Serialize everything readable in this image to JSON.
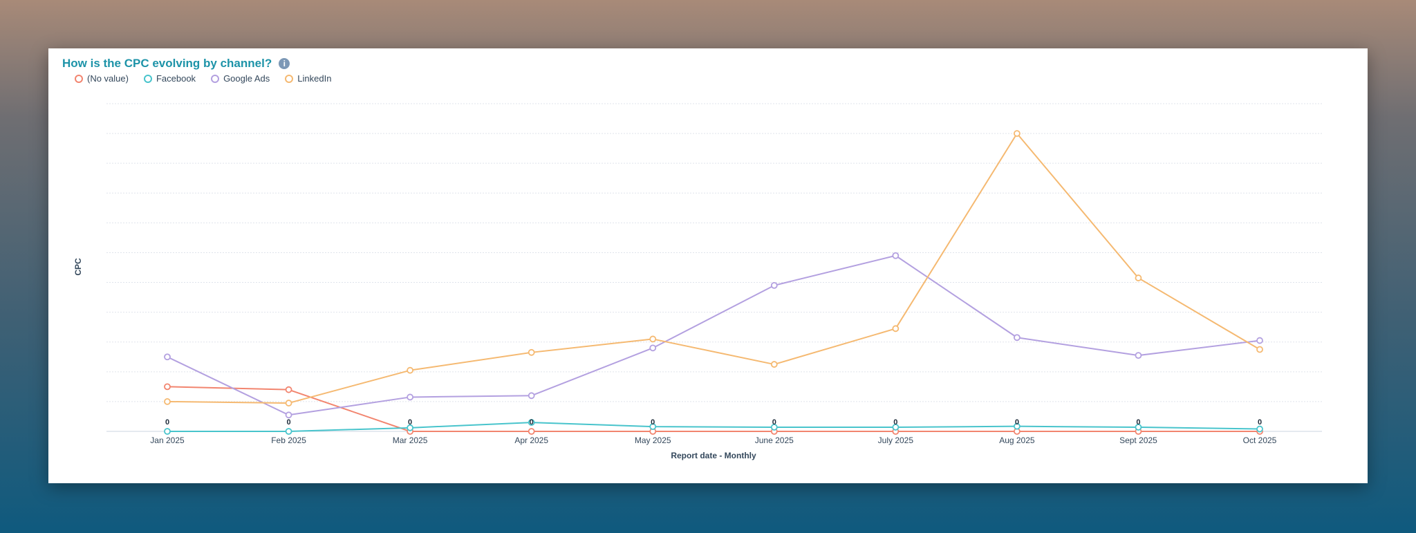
{
  "chart_data": {
    "type": "line",
    "title": "How is the CPC evolving by channel?",
    "xlabel": "Report date - Monthly",
    "ylabel": "CPC",
    "ylim": [
      0,
      11
    ],
    "grid": true,
    "legend_position": "top-left",
    "categories": [
      "Jan 2025",
      "Feb 2025",
      "Mar 2025",
      "Apr 2025",
      "May 2025",
      "June 2025",
      "July 2025",
      "Aug 2025",
      "Sept 2025",
      "Oct 2025"
    ],
    "series": [
      {
        "name": "(No value)",
        "color": "#f2856f",
        "values": [
          1.5,
          1.4,
          0,
          0,
          0,
          0,
          0,
          0,
          0,
          0
        ]
      },
      {
        "name": "Facebook",
        "color": "#48c4cc",
        "values": [
          0,
          0,
          0.12,
          0.3,
          0.16,
          0.14,
          0.14,
          0.17,
          0.14,
          0.08
        ]
      },
      {
        "name": "Google Ads",
        "color": "#b3a0e0",
        "values": [
          2.5,
          0.55,
          1.15,
          1.2,
          2.8,
          4.9,
          5.9,
          3.15,
          2.55,
          3.05
        ]
      },
      {
        "name": "LinkedIn",
        "color": "#f5b971",
        "values": [
          1.0,
          0.95,
          2.05,
          2.65,
          3.1,
          2.25,
          3.45,
          10.0,
          5.15,
          2.75
        ]
      }
    ],
    "zero_labels": [
      "0",
      "0",
      "0",
      "0",
      "0",
      "0",
      "0",
      "0",
      "0",
      "0"
    ]
  },
  "info_icon": "info-icon"
}
